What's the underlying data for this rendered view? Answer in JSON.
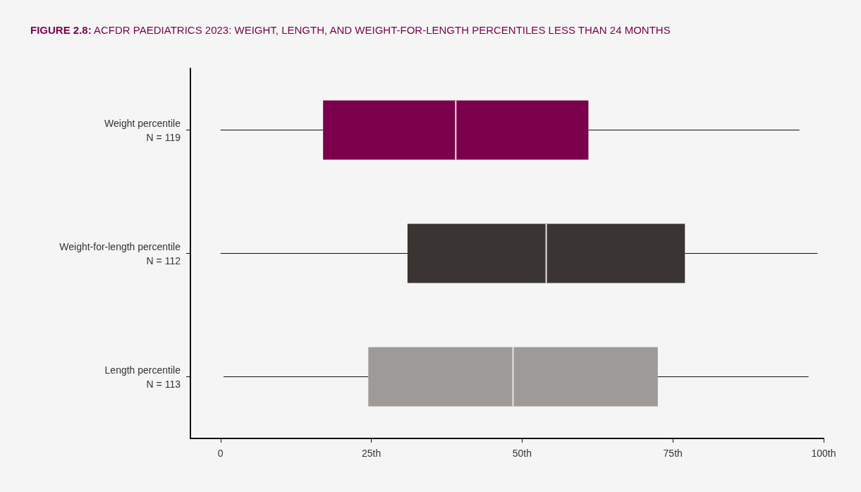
{
  "chart_data": {
    "type": "box",
    "orientation": "horizontal",
    "title": "FIGURE 2.8: ACFDR PAEDIATRICS 2023: WEIGHT, LENGTH, AND WEIGHT-FOR-LENGTH PERCENTILES LESS THAN 24 MONTHS",
    "categories": [
      "Weight percentile\nN = 119",
      "Weight-for-length percentile\nN = 112",
      "Length percentile\nN = 113"
    ],
    "boxes": [
      {
        "low": 0,
        "q1": 17,
        "median": 39,
        "q3": 61,
        "high": 96
      },
      {
        "low": 0,
        "q1": 31,
        "median": 54,
        "q3": 77,
        "high": 99
      },
      {
        "low": 0.5,
        "q1": 24.5,
        "median": 48.5,
        "q3": 72.5,
        "high": 97.5
      }
    ],
    "colors": [
      "#7a004b",
      "#3a3533",
      "#9e9a98"
    ],
    "xlim": [
      -5,
      100
    ],
    "xticks": [
      0,
      {
        "value": 25,
        "label": "25th"
      },
      {
        "value": 50,
        "label": "50th"
      },
      {
        "value": 75,
        "label": "75th"
      },
      {
        "value": 100,
        "label": "100th"
      }
    ],
    "grid": false
  }
}
